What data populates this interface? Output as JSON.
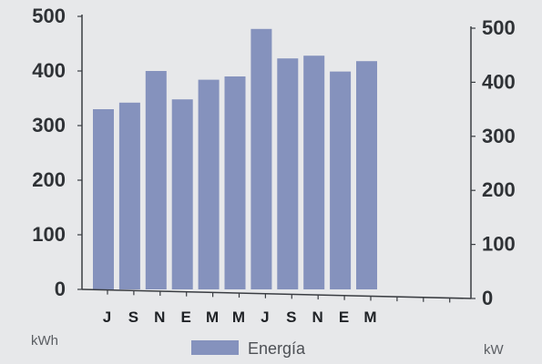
{
  "chart_data": {
    "type": "bar",
    "categories": [
      "J",
      "S",
      "N",
      "E",
      "M",
      "M",
      "J",
      "S",
      "N",
      "E",
      "M"
    ],
    "series": [
      {
        "name": "Energía",
        "values": [
          330,
          342,
          400,
          348,
          384,
          390,
          477,
          423,
          428,
          399,
          418
        ]
      }
    ],
    "ylim": [
      0,
      500
    ],
    "y_ticks": [
      "0",
      "100",
      "200",
      "300",
      "400",
      "500"
    ],
    "y2lim": [
      0,
      500
    ],
    "y2_ticks": [
      "0",
      "100",
      "200",
      "300",
      "400",
      "500"
    ],
    "y_unit": "kWh",
    "y2_unit": "kW",
    "legend": {
      "label": "Energía",
      "position": "bottom"
    },
    "grid": false,
    "colors": {
      "bar": "#8592bd",
      "axis": "#3a3d42"
    }
  }
}
